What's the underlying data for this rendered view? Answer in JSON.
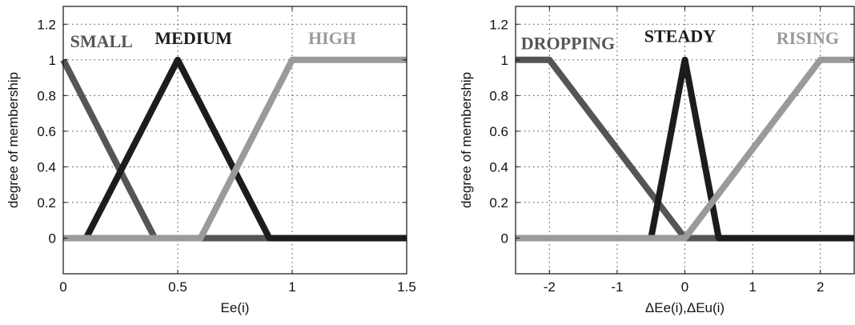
{
  "chart_data": [
    {
      "type": "line",
      "xlabel": "Ee(i)",
      "ylabel": "degree of membership",
      "xlim": [
        0,
        1.5
      ],
      "ylim": [
        -0.2,
        1.3
      ],
      "xticks": [
        0,
        0.5,
        1,
        1.5
      ],
      "xtick_labels": [
        "0",
        "0.5",
        "1",
        "1.5"
      ],
      "yticks": [
        0,
        0.2,
        0.4,
        0.6,
        0.8,
        1,
        1.2
      ],
      "ytick_labels": [
        "0",
        "0.2",
        "0.4",
        "0.6",
        "0.8",
        "1",
        "1.2"
      ],
      "grid": true,
      "series": [
        {
          "name": "SMALL",
          "color": "#555555",
          "x": [
            0,
            0.4,
            1.5
          ],
          "y": [
            1,
            0,
            0
          ]
        },
        {
          "name": "MEDIUM",
          "color": "#1c1c1c",
          "x": [
            0,
            0.1,
            0.5,
            0.9,
            1.5
          ],
          "y": [
            0,
            0,
            1,
            0,
            0
          ]
        },
        {
          "name": "HIGH",
          "color": "#9a9a9a",
          "x": [
            0,
            0.6,
            1,
            1.5
          ],
          "y": [
            0,
            0,
            1,
            1
          ]
        }
      ],
      "labels": [
        {
          "text": "SMALL",
          "color": "#555555",
          "x": 0.03,
          "y": 1.07
        },
        {
          "text": "MEDIUM",
          "color": "#1c1c1c",
          "x": 0.4,
          "y": 1.09
        },
        {
          "text": "HIGH",
          "color": "#9a9a9a",
          "x": 1.07,
          "y": 1.09
        }
      ]
    },
    {
      "type": "line",
      "xlabel": "ΔEe(i),ΔEu(i)",
      "ylabel": "degree of membership",
      "xlim": [
        -2.5,
        2.5
      ],
      "ylim": [
        -0.2,
        1.3
      ],
      "xticks": [
        -2,
        -1,
        0,
        1,
        2
      ],
      "xtick_labels": [
        "-2",
        "-1",
        "0",
        "1",
        "2"
      ],
      "yticks": [
        0,
        0.2,
        0.4,
        0.6,
        0.8,
        1,
        1.2
      ],
      "ytick_labels": [
        "0",
        "0.2",
        "0.4",
        "0.6",
        "0.8",
        "1",
        "1.2"
      ],
      "grid": true,
      "series": [
        {
          "name": "DROPPING",
          "color": "#555555",
          "x": [
            -2.5,
            -2,
            0,
            2.5
          ],
          "y": [
            1,
            1,
            0,
            0
          ]
        },
        {
          "name": "STEADY",
          "color": "#1c1c1c",
          "x": [
            -2.5,
            -0.5,
            0,
            0.5,
            2.5
          ],
          "y": [
            0,
            0,
            1,
            0,
            0
          ]
        },
        {
          "name": "RISING",
          "color": "#9a9a9a",
          "x": [
            -2.5,
            0,
            2,
            2.5
          ],
          "y": [
            0,
            0,
            1,
            1
          ]
        }
      ],
      "labels": [
        {
          "text": "DROPPING",
          "color": "#555555",
          "x": -2.42,
          "y": 1.06
        },
        {
          "text": "STEADY",
          "color": "#1c1c1c",
          "x": -0.6,
          "y": 1.1
        },
        {
          "text": "RISING",
          "color": "#9a9a9a",
          "x": 1.35,
          "y": 1.09
        }
      ]
    }
  ]
}
